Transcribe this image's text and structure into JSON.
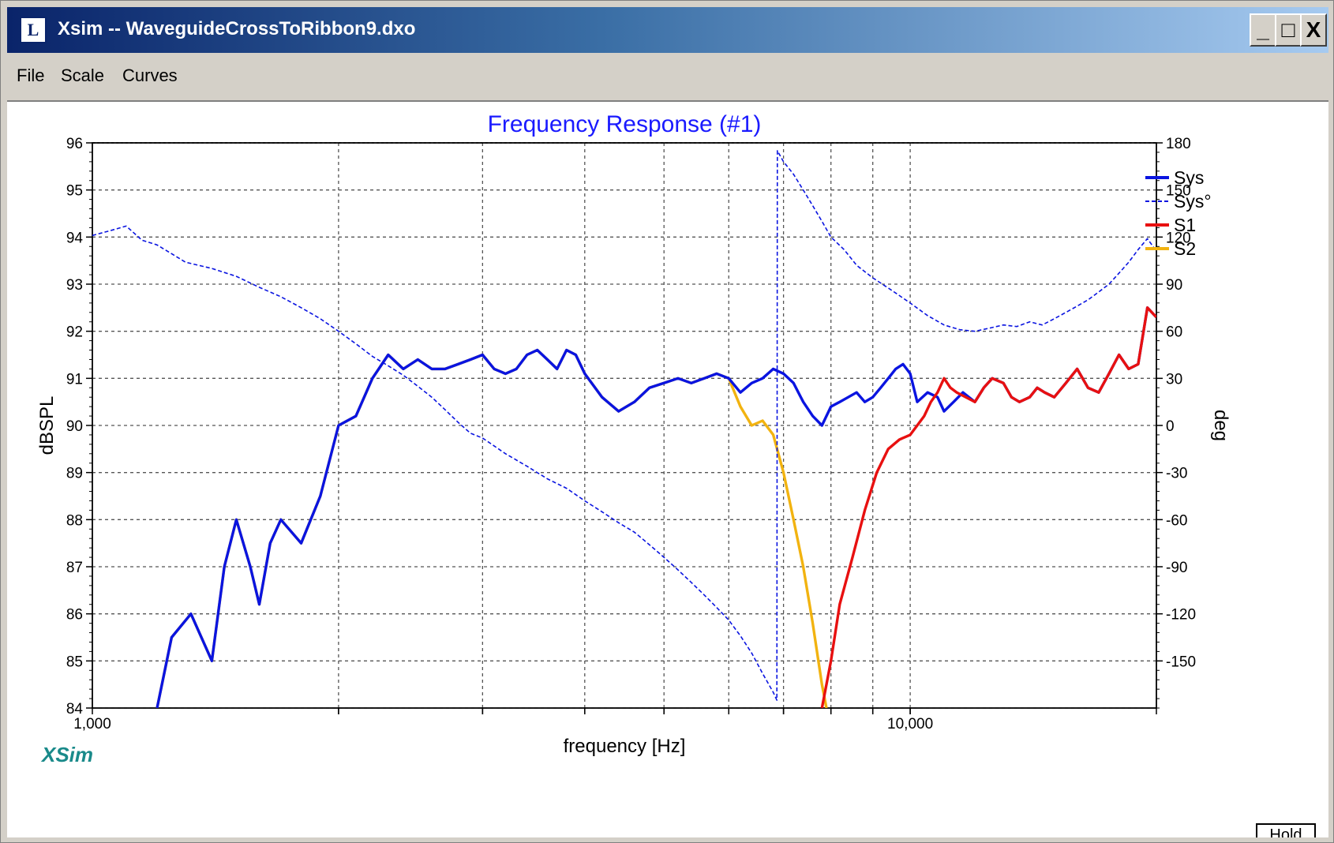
{
  "window": {
    "title": "Xsim -- WaveguideCrossToRibbon9.dxo",
    "icon": "xsim-app-icon",
    "controls": {
      "minimize": "_",
      "maximize": "□",
      "close": "X"
    }
  },
  "menu": {
    "items": [
      "File",
      "Scale",
      "Curves"
    ]
  },
  "logo": "XSim",
  "hold_label": "Hold",
  "colors": {
    "sys": "#0a14e0",
    "s1": "#e81010",
    "s2": "#f2b310",
    "title": "#1a1aff",
    "logo": "#1a8a8a"
  },
  "chart_data": {
    "type": "line",
    "title": "Frequency Response (#1)",
    "xlabel": "frequency [Hz]",
    "ylabel": "dBSPL",
    "y2label": "deg",
    "xscale": "log",
    "xlim": [
      1000,
      20000
    ],
    "ylim": [
      84,
      96
    ],
    "y2lim": [
      -180,
      180
    ],
    "x_tick_labels": [
      {
        "value": 1000,
        "label": "1,000"
      },
      {
        "value": 10000,
        "label": "10,000"
      }
    ],
    "x_gridlines": [
      2000,
      3000,
      4000,
      5000,
      6000,
      7000,
      8000,
      9000,
      10000
    ],
    "y_ticks": [
      84,
      85,
      86,
      87,
      88,
      89,
      90,
      91,
      92,
      93,
      94,
      95,
      96
    ],
    "y2_ticks": [
      -150,
      -120,
      -90,
      -60,
      -30,
      0,
      30,
      60,
      90,
      120,
      150,
      180
    ],
    "grid": true,
    "legend_position": "right",
    "series": [
      {
        "name": "Sys",
        "axis": "left",
        "style": "solid",
        "color": "#0a14e0",
        "points": [
          [
            1200,
            84
          ],
          [
            1250,
            85.5
          ],
          [
            1320,
            86
          ],
          [
            1400,
            85
          ],
          [
            1450,
            87
          ],
          [
            1500,
            88
          ],
          [
            1560,
            87
          ],
          [
            1600,
            86.2
          ],
          [
            1650,
            87.5
          ],
          [
            1700,
            88
          ],
          [
            1800,
            87.5
          ],
          [
            1900,
            88.5
          ],
          [
            2000,
            90
          ],
          [
            2100,
            90.2
          ],
          [
            2200,
            91
          ],
          [
            2300,
            91.5
          ],
          [
            2400,
            91.2
          ],
          [
            2500,
            91.4
          ],
          [
            2600,
            91.2
          ],
          [
            2700,
            91.2
          ],
          [
            2800,
            91.3
          ],
          [
            2900,
            91.4
          ],
          [
            3000,
            91.5
          ],
          [
            3100,
            91.2
          ],
          [
            3200,
            91.1
          ],
          [
            3300,
            91.2
          ],
          [
            3400,
            91.5
          ],
          [
            3500,
            91.6
          ],
          [
            3600,
            91.4
          ],
          [
            3700,
            91.2
          ],
          [
            3800,
            91.6
          ],
          [
            3900,
            91.5
          ],
          [
            4000,
            91.1
          ],
          [
            4200,
            90.6
          ],
          [
            4400,
            90.3
          ],
          [
            4600,
            90.5
          ],
          [
            4800,
            90.8
          ],
          [
            5000,
            90.9
          ],
          [
            5200,
            91
          ],
          [
            5400,
            90.9
          ],
          [
            5600,
            91.0
          ],
          [
            5800,
            91.1
          ],
          [
            6000,
            91.0
          ],
          [
            6200,
            90.7
          ],
          [
            6400,
            90.9
          ],
          [
            6600,
            91.0
          ],
          [
            6800,
            91.2
          ],
          [
            7000,
            91.1
          ],
          [
            7200,
            90.9
          ],
          [
            7400,
            90.5
          ],
          [
            7600,
            90.2
          ],
          [
            7800,
            90.0
          ],
          [
            8000,
            90.4
          ],
          [
            8200,
            90.5
          ],
          [
            8400,
            90.6
          ],
          [
            8600,
            90.7
          ],
          [
            8800,
            90.5
          ],
          [
            9000,
            90.6
          ],
          [
            9200,
            90.8
          ],
          [
            9400,
            91.0
          ],
          [
            9600,
            91.2
          ],
          [
            9800,
            91.3
          ],
          [
            10000,
            91.1
          ],
          [
            10200,
            90.5
          ],
          [
            10500,
            90.7
          ],
          [
            10800,
            90.6
          ],
          [
            11000,
            90.3
          ],
          [
            11300,
            90.5
          ],
          [
            11600,
            90.7
          ],
          [
            12000,
            90.5
          ],
          [
            12300,
            90.8
          ],
          [
            12600,
            91.0
          ],
          [
            13000,
            90.9
          ],
          [
            13300,
            90.6
          ],
          [
            13600,
            90.5
          ],
          [
            14000,
            90.6
          ],
          [
            14300,
            90.8
          ],
          [
            14600,
            90.7
          ],
          [
            15000,
            90.6
          ],
          [
            15500,
            90.9
          ],
          [
            16000,
            91.2
          ],
          [
            16500,
            90.8
          ],
          [
            17000,
            90.7
          ],
          [
            17500,
            91.1
          ],
          [
            18000,
            91.5
          ],
          [
            18500,
            91.2
          ],
          [
            19000,
            91.3
          ],
          [
            19500,
            92.5
          ],
          [
            20000,
            92.3
          ]
        ]
      },
      {
        "name": "Sys°",
        "axis": "right",
        "style": "dashed",
        "color": "#0a14e0",
        "points": [
          [
            1000,
            121
          ],
          [
            1050,
            124
          ],
          [
            1100,
            127
          ],
          [
            1150,
            118
          ],
          [
            1200,
            115
          ],
          [
            1300,
            104
          ],
          [
            1400,
            100
          ],
          [
            1500,
            95
          ],
          [
            1600,
            88
          ],
          [
            1700,
            82
          ],
          [
            1800,
            75
          ],
          [
            1900,
            68
          ],
          [
            2000,
            60
          ],
          [
            2100,
            52
          ],
          [
            2200,
            44
          ],
          [
            2300,
            38
          ],
          [
            2400,
            32
          ],
          [
            2500,
            25
          ],
          [
            2600,
            18
          ],
          [
            2700,
            10
          ],
          [
            2800,
            2
          ],
          [
            2900,
            -5
          ],
          [
            3000,
            -8
          ],
          [
            3200,
            -18
          ],
          [
            3400,
            -26
          ],
          [
            3600,
            -34
          ],
          [
            3800,
            -40
          ],
          [
            4000,
            -48
          ],
          [
            4200,
            -55
          ],
          [
            4400,
            -62
          ],
          [
            4600,
            -68
          ],
          [
            4800,
            -76
          ],
          [
            5000,
            -84
          ],
          [
            5200,
            -92
          ],
          [
            5400,
            -100
          ],
          [
            5600,
            -108
          ],
          [
            5800,
            -116
          ],
          [
            6000,
            -124
          ],
          [
            6200,
            -134
          ],
          [
            6400,
            -145
          ],
          [
            6600,
            -158
          ],
          [
            6800,
            -170
          ],
          [
            6870,
            -175
          ],
          [
            6880,
            175
          ],
          [
            7000,
            168
          ],
          [
            7200,
            160
          ],
          [
            7400,
            150
          ],
          [
            7600,
            140
          ],
          [
            7800,
            130
          ],
          [
            8000,
            120
          ],
          [
            8300,
            112
          ],
          [
            8600,
            102
          ],
          [
            9000,
            94
          ],
          [
            9500,
            86
          ],
          [
            10000,
            78
          ],
          [
            10500,
            70
          ],
          [
            11000,
            64
          ],
          [
            11500,
            61
          ],
          [
            12000,
            60
          ],
          [
            12500,
            62
          ],
          [
            13000,
            64
          ],
          [
            13500,
            63
          ],
          [
            14000,
            66
          ],
          [
            14500,
            64
          ],
          [
            15000,
            68
          ],
          [
            15500,
            72
          ],
          [
            16000,
            76
          ],
          [
            16500,
            80
          ],
          [
            17000,
            85
          ],
          [
            17500,
            90
          ],
          [
            18000,
            97
          ],
          [
            18500,
            104
          ],
          [
            19000,
            112
          ],
          [
            19500,
            119
          ],
          [
            20000,
            111
          ]
        ]
      },
      {
        "name": "S1",
        "axis": "left",
        "style": "solid",
        "color": "#e81010",
        "points": [
          [
            7800,
            84
          ],
          [
            8000,
            85
          ],
          [
            8200,
            86.2
          ],
          [
            8500,
            87.2
          ],
          [
            8800,
            88.2
          ],
          [
            9100,
            89.0
          ],
          [
            9400,
            89.5
          ],
          [
            9700,
            89.7
          ],
          [
            10000,
            89.8
          ],
          [
            10200,
            90.0
          ],
          [
            10400,
            90.2
          ],
          [
            10600,
            90.5
          ],
          [
            10800,
            90.7
          ],
          [
            11000,
            91.0
          ],
          [
            11200,
            90.8
          ],
          [
            11400,
            90.7
          ],
          [
            11700,
            90.6
          ],
          [
            12000,
            90.5
          ],
          [
            12300,
            90.8
          ],
          [
            12600,
            91.0
          ],
          [
            13000,
            90.9
          ],
          [
            13300,
            90.6
          ],
          [
            13600,
            90.5
          ],
          [
            14000,
            90.6
          ],
          [
            14300,
            90.8
          ],
          [
            14600,
            90.7
          ],
          [
            15000,
            90.6
          ],
          [
            15500,
            90.9
          ],
          [
            16000,
            91.2
          ],
          [
            16500,
            90.8
          ],
          [
            17000,
            90.7
          ],
          [
            17500,
            91.1
          ],
          [
            18000,
            91.5
          ],
          [
            18500,
            91.2
          ],
          [
            19000,
            91.3
          ],
          [
            19500,
            92.5
          ],
          [
            20000,
            92.3
          ]
        ]
      },
      {
        "name": "S2",
        "axis": "left",
        "style": "solid",
        "color": "#f2b310",
        "points": [
          [
            1200,
            84
          ],
          [
            1250,
            85.5
          ],
          [
            1320,
            86
          ],
          [
            1400,
            85
          ],
          [
            1450,
            87
          ],
          [
            1500,
            88
          ],
          [
            1560,
            87
          ],
          [
            1600,
            86.2
          ],
          [
            1650,
            87.5
          ],
          [
            1700,
            88
          ],
          [
            1800,
            87.5
          ],
          [
            1900,
            88.5
          ],
          [
            2000,
            90
          ],
          [
            2100,
            90.2
          ],
          [
            2200,
            91
          ],
          [
            2300,
            91.5
          ],
          [
            2400,
            91.2
          ],
          [
            2500,
            91.4
          ],
          [
            2600,
            91.2
          ],
          [
            2700,
            91.2
          ],
          [
            2800,
            91.3
          ],
          [
            2900,
            91.4
          ],
          [
            3000,
            91.5
          ],
          [
            3100,
            91.2
          ],
          [
            3200,
            91.1
          ],
          [
            3300,
            91.2
          ],
          [
            3400,
            91.5
          ],
          [
            3500,
            91.6
          ],
          [
            3600,
            91.4
          ],
          [
            3700,
            91.2
          ],
          [
            3800,
            91.6
          ],
          [
            3900,
            91.5
          ],
          [
            4000,
            91.1
          ],
          [
            4200,
            90.6
          ],
          [
            4400,
            90.3
          ],
          [
            4600,
            90.5
          ],
          [
            4800,
            90.8
          ],
          [
            5000,
            90.9
          ],
          [
            5200,
            91
          ],
          [
            5400,
            90.9
          ],
          [
            5600,
            91.0
          ],
          [
            5800,
            91.1
          ],
          [
            6000,
            91.0
          ],
          [
            6200,
            90.4
          ],
          [
            6400,
            90.0
          ],
          [
            6600,
            90.1
          ],
          [
            6800,
            89.8
          ],
          [
            7000,
            89.0
          ],
          [
            7200,
            88.0
          ],
          [
            7400,
            87.0
          ],
          [
            7600,
            85.8
          ],
          [
            7800,
            84.5
          ],
          [
            7900,
            84
          ]
        ]
      }
    ]
  }
}
